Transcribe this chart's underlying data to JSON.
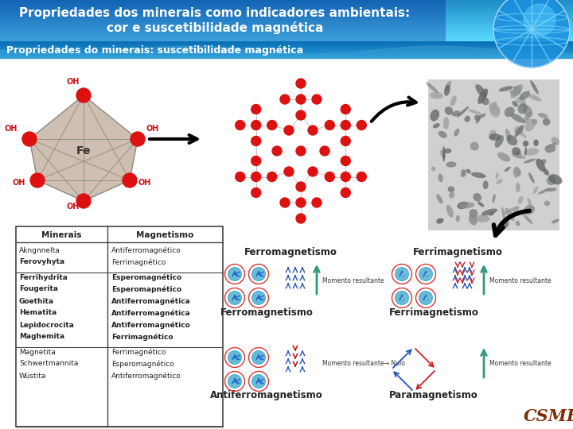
{
  "title_line1": "Propriedades dos minerais como indicadores ambientais:",
  "title_line2": "cor e suscetibilidade magnética",
  "subtitle": "Propriedades do minerais: suscetibilidade magnética",
  "table_headers": [
    "Minerais",
    "Magnetismo"
  ],
  "table_rows_group1": [
    [
      "Akngnnelta",
      "Antiferromagnético"
    ],
    [
      "Ferovyhyta",
      "Ferrimagnético"
    ]
  ],
  "table_rows_group2": [
    [
      "Ferrihydrita",
      "Esperomagnético"
    ],
    [
      "Fougerita",
      "Esperomapnético"
    ],
    [
      "Goethita",
      "Antiferromagnética"
    ],
    [
      "Hematita",
      "Antiferromagnética"
    ],
    [
      "Lepidocrocita",
      "Antiferromagnético"
    ],
    [
      "Maghemita",
      "Ferrimagnético"
    ]
  ],
  "table_rows_group3": [
    [
      "Magnetita",
      "Ferrimagnético"
    ],
    [
      "Schwertmannita",
      "Esperomagnético"
    ],
    [
      "Wüstita",
      "Antiferromagnético"
    ]
  ],
  "bold_rows_g1": [
    1
  ],
  "bold_rows_g2": [
    0,
    1,
    2,
    3,
    4,
    5
  ],
  "bold_rows_g3": [],
  "csme_color": "#7a2e0a",
  "ferro_label": "Ferromagnetismo",
  "ferri_label": "Ferrimagnetismo",
  "antiferro_label": "Antiferromagnetismo",
  "para_label": "Paramagnetismo",
  "momento_label": "Momento resultante",
  "momento_label2": "Momento resultante",
  "momento_label3": "Momento resultante→ Nulo",
  "momento_label4": "Momento resultante"
}
